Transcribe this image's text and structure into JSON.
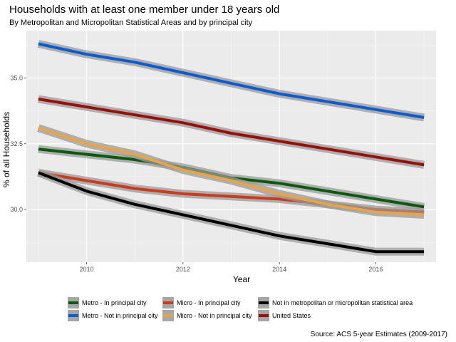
{
  "chart_data": {
    "type": "line",
    "title": "Households with at least one member under 18 years old",
    "subtitle": "By Metropolitan and Micropolitan Statistical Areas and by principal city",
    "xlabel": "Year",
    "ylabel": "% of all Households",
    "caption": "Source: ACS 5-year Estimates (2009-2017)",
    "x": [
      2009,
      2010,
      2011,
      2012,
      2013,
      2014,
      2015,
      2016,
      2017
    ],
    "xlim": [
      2008.75,
      2017.25
    ],
    "ylim": [
      28.0,
      36.8
    ],
    "x_ticks": [
      2010,
      2012,
      2014,
      2016
    ],
    "x_tick_labels": [
      "2010",
      "2012",
      "2014",
      "2016"
    ],
    "y_ticks": [
      30.0,
      32.5,
      35.0
    ],
    "y_tick_labels": [
      "30.0",
      "32.5",
      "35.0"
    ],
    "grid": true,
    "legend_position": "bottom",
    "series": [
      {
        "name": "Metro - In principal city",
        "color": "#0b5a10",
        "values": [
          32.3,
          32.1,
          31.9,
          31.6,
          31.2,
          31.0,
          30.7,
          30.4,
          30.1
        ]
      },
      {
        "name": "Metro - Not in principal city",
        "color": "#0b5bd3",
        "values": [
          36.3,
          35.9,
          35.6,
          35.2,
          34.8,
          34.4,
          34.1,
          33.8,
          33.5
        ]
      },
      {
        "name": "Micro - In principal city",
        "color": "#cc3b1b",
        "values": [
          31.4,
          31.1,
          30.8,
          30.6,
          30.5,
          30.4,
          30.2,
          30.0,
          29.9
        ]
      },
      {
        "name": "Micro - Not in principal city",
        "color": "#e7a448",
        "values": [
          33.1,
          32.5,
          32.1,
          31.5,
          31.1,
          30.6,
          30.2,
          29.9,
          29.8
        ]
      },
      {
        "name": "Not in metropolitan or micropolitan statistical area",
        "color": "#000000",
        "values": [
          31.4,
          30.7,
          30.2,
          29.8,
          29.4,
          29.0,
          28.7,
          28.4,
          28.4
        ]
      },
      {
        "name": "United States",
        "color": "#9b0f0a",
        "values": [
          34.2,
          33.9,
          33.6,
          33.3,
          32.9,
          32.6,
          32.3,
          32.0,
          31.7
        ]
      }
    ]
  }
}
